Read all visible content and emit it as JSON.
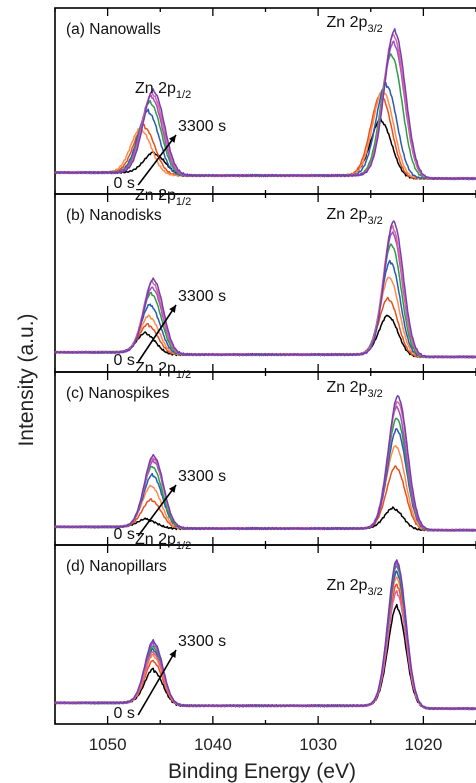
{
  "chart_data": {
    "type": "line",
    "xlabel": "Binding Energy (eV)",
    "ylabel": "Intensity (a.u.)",
    "xlim": [
      1055,
      1015
    ],
    "x_reversed": true,
    "xticks": [
      "1050",
      "1040",
      "1030",
      "1020"
    ],
    "x_tick_values": [
      1050,
      1040,
      1030,
      1020
    ],
    "series_colors": [
      "#000000",
      "#e8501e",
      "#ff8c4a",
      "#2a5ab0",
      "#2aa040",
      "#a050c0",
      "#e060a0",
      "#7040b0"
    ],
    "panels": [
      {
        "label": "(a) Nanowalls",
        "peak_label_1": "Zn 2p",
        "peak_sub_1": "1/2",
        "peak_label_2": "Zn 2p",
        "peak_sub_2": "3/2",
        "time_start": "0 s",
        "time_end": "3300 s",
        "peaks": {
          "p1_center": [
            1045.5,
            1046.5,
            1046.8,
            1046.1,
            1045.9,
            1045.8,
            1045.7,
            1045.6
          ],
          "p1_height": [
            0.14,
            0.32,
            0.3,
            0.42,
            0.48,
            0.52,
            0.54,
            0.56
          ],
          "p2_center": [
            1024.0,
            1024.0,
            1023.8,
            1023.5,
            1023.0,
            1022.8,
            1022.8,
            1022.7
          ],
          "p2_height": [
            0.38,
            0.55,
            0.58,
            0.62,
            0.82,
            0.9,
            0.95,
            0.98
          ],
          "width": 1.0,
          "background": 0.05
        }
      },
      {
        "label": "(b) Nanodisks",
        "peak_label_1": "Zn 2p",
        "peak_sub_1": "1/2",
        "peak_label_2": "Zn 2p",
        "peak_sub_2": "3/2",
        "time_start": "0 s",
        "time_end": "3300 s",
        "peaks": {
          "p1_center": [
            1046.3,
            1046.1,
            1046.0,
            1045.9,
            1045.8,
            1045.7,
            1045.7,
            1045.6
          ],
          "p1_height": [
            0.14,
            0.2,
            0.26,
            0.34,
            0.42,
            0.46,
            0.5,
            0.52
          ],
          "p2_center": [
            1023.3,
            1023.3,
            1023.2,
            1023.1,
            1023.0,
            1022.9,
            1022.9,
            1022.8
          ],
          "p2_height": [
            0.28,
            0.4,
            0.55,
            0.66,
            0.78,
            0.86,
            0.9,
            0.94
          ],
          "width": 0.9,
          "background": 0.04
        }
      },
      {
        "label": "(c) Nanospikes",
        "peak_label_1": "Zn 2p",
        "peak_sub_1": "1/2",
        "peak_label_2": "Zn 2p",
        "peak_sub_2": "3/2",
        "time_start": "0 s",
        "time_end": "3300 s",
        "peaks": {
          "p1_center": [
            1046.2,
            1045.8,
            1045.8,
            1045.7,
            1045.7,
            1045.6,
            1045.6,
            1045.6
          ],
          "p1_height": [
            0.06,
            0.2,
            0.3,
            0.38,
            0.44,
            0.48,
            0.5,
            0.52
          ],
          "p2_center": [
            1022.8,
            1022.6,
            1022.6,
            1022.5,
            1022.5,
            1022.5,
            1022.4,
            1022.4
          ],
          "p2_height": [
            0.15,
            0.45,
            0.6,
            0.72,
            0.8,
            0.88,
            0.92,
            0.96
          ],
          "width": 0.9,
          "background": 0.03
        }
      },
      {
        "label": "(d) Nanopillars",
        "peak_label_1": "Zn 2p",
        "peak_sub_1": "1/2",
        "peak_label_2": "Zn 2p",
        "peak_sub_2": "3/2",
        "time_start": "0 s",
        "time_end": "3300 s",
        "peaks": {
          "p1_center": [
            1045.6,
            1045.6,
            1045.6,
            1045.6,
            1045.6,
            1045.6,
            1045.6,
            1045.6
          ],
          "p1_height": [
            0.24,
            0.3,
            0.34,
            0.38,
            0.4,
            0.42,
            0.36,
            0.44
          ],
          "p2_center": [
            1022.5,
            1022.5,
            1022.5,
            1022.5,
            1022.5,
            1022.5,
            1022.5,
            1022.5
          ],
          "p2_height": [
            0.7,
            0.85,
            0.9,
            0.94,
            0.98,
            1.0,
            0.8,
            1.02
          ],
          "width": 0.85,
          "background": 0.05
        }
      }
    ]
  }
}
